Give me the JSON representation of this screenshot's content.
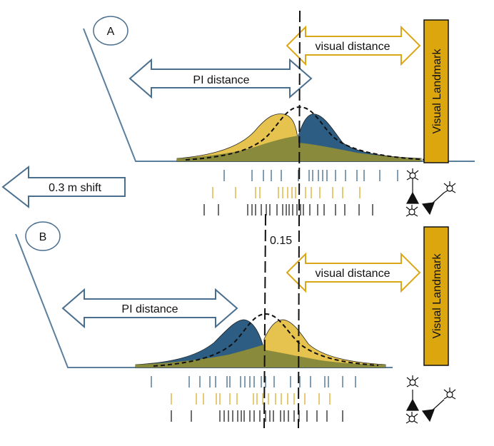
{
  "colors": {
    "blue": "#2d5d82",
    "yellow": "#e6c34f",
    "overlap": "#8a8a3c",
    "landmark": "#dba60e",
    "arrow_blue": "#4a6f8e",
    "arrow_yellow": "#d9a717",
    "line": "#5b7f9d"
  },
  "panels": [
    {
      "label": "A",
      "pi_label": "PI distance",
      "visual_label": "visual distance",
      "landmark_label": "Visual Landmark"
    },
    {
      "label": "B",
      "pi_label": "PI distance",
      "visual_label": "visual distance",
      "landmark_label": "Visual Landmark"
    }
  ],
  "shift_label": "0.3 m shift",
  "annotation_value": "0.15",
  "icons": [
    "neuron-icon",
    "neuron-icon",
    "neuron-icon",
    "triangle-icon",
    "triangle-icon"
  ]
}
